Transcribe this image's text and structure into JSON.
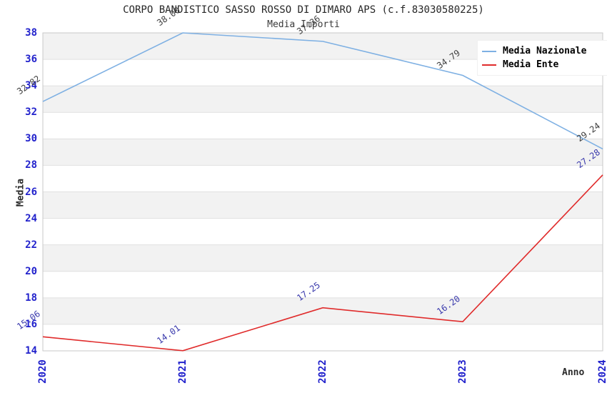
{
  "title": "CORPO BANDISTICO SASSO ROSSO DI DIMARO APS (c.f.83030580225)",
  "subtitle": "Media Importi",
  "chart_data": {
    "type": "line",
    "categories": [
      "2020",
      "2021",
      "2022",
      "2023",
      "2024"
    ],
    "series": [
      {
        "name": "Media Nazionale",
        "color": "#7EB0E3",
        "label_color": "#404040",
        "values": [
          32.82,
          38.0,
          37.36,
          34.79,
          29.24
        ],
        "point_labels": [
          "32.82",
          "38.00",
          "37.36",
          "34.79",
          "29.24"
        ]
      },
      {
        "name": "Media Ente",
        "color": "#E02B2B",
        "label_color": "#3939AC",
        "values": [
          15.06,
          14.01,
          17.25,
          16.2,
          27.28
        ],
        "point_labels": [
          "15.06",
          "14.01",
          "17.25",
          "16.20",
          "27.28"
        ]
      }
    ],
    "xlabel": "Anno",
    "ylabel": "Media",
    "ylim": [
      14,
      38
    ],
    "yticks": [
      14,
      16,
      18,
      20,
      22,
      24,
      26,
      28,
      30,
      32,
      34,
      36,
      38
    ],
    "grid": true,
    "legend_position": "top-right",
    "colors": {
      "tick_label": "#2222CC",
      "band_fill": "#F2F2F2",
      "gridline": "#E0E0E0",
      "plot_border": "#C8C8C8",
      "title_text": "#262626"
    }
  }
}
